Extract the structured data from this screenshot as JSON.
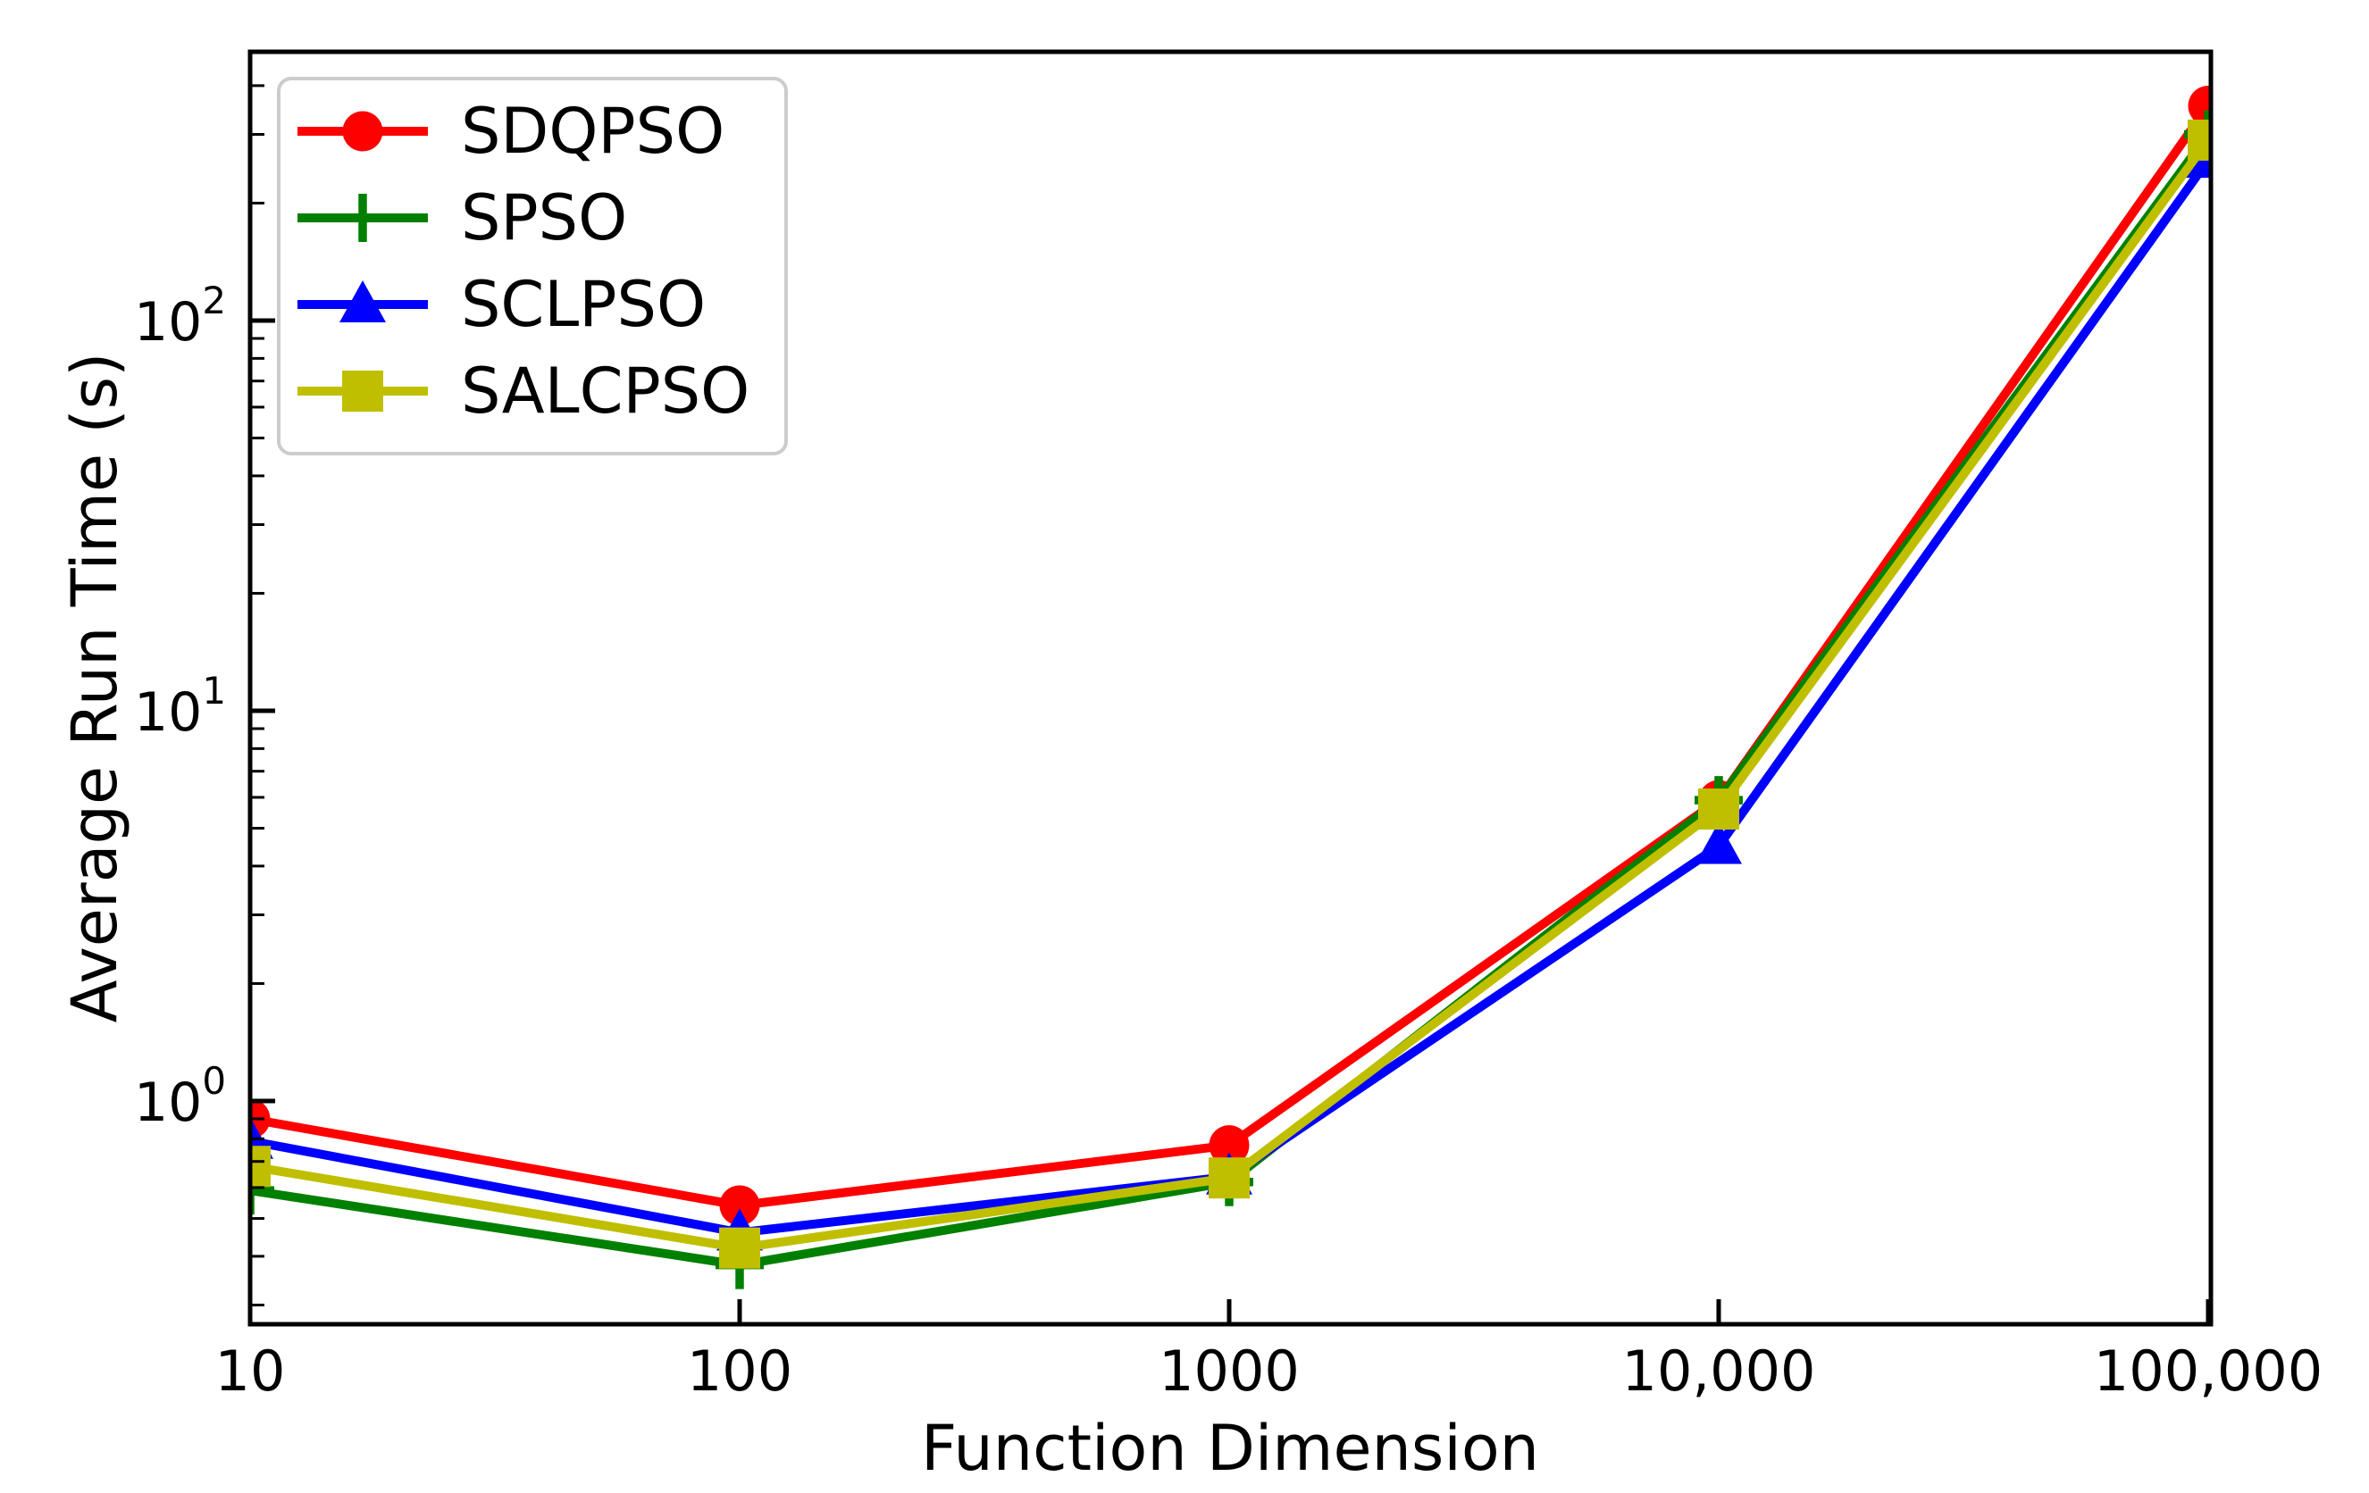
{
  "figure": {
    "background": "#ffffff",
    "axis_color": "#000000"
  },
  "chart_data": {
    "type": "line",
    "title": "",
    "xlabel": "Function Dimension",
    "ylabel": "Average Run Time (s)",
    "x_scale": "log",
    "y_scale": "log",
    "grid": false,
    "x": [
      10,
      100,
      1000,
      10000,
      100000
    ],
    "x_tick_labels": [
      "10",
      "100",
      "1000",
      "10,000",
      "100,000"
    ],
    "y_tick_base": "10",
    "y_tick_exponents": [
      0,
      1,
      2
    ],
    "xlim": [
      10,
      100000
    ],
    "ylim": [
      0.27,
      490
    ],
    "legend": {
      "position": "upper-left",
      "border_color": "#cccccc",
      "background": "#ffffff"
    },
    "series": [
      {
        "name": "SDQPSO",
        "color": "#ff0000",
        "marker": "circle",
        "values": [
          0.9,
          0.54,
          0.77,
          5.9,
          355
        ]
      },
      {
        "name": "SPSO",
        "color": "#008000",
        "marker": "plus",
        "values": [
          0.59,
          0.38,
          0.62,
          5.9,
          300
        ]
      },
      {
        "name": "SCLPSO",
        "color": "#0000ff",
        "marker": "triangle",
        "values": [
          0.79,
          0.46,
          0.64,
          4.5,
          258
        ]
      },
      {
        "name": "SALCPSO",
        "color": "#bfbf00",
        "marker": "square",
        "values": [
          0.68,
          0.42,
          0.635,
          5.6,
          290
        ]
      }
    ]
  }
}
